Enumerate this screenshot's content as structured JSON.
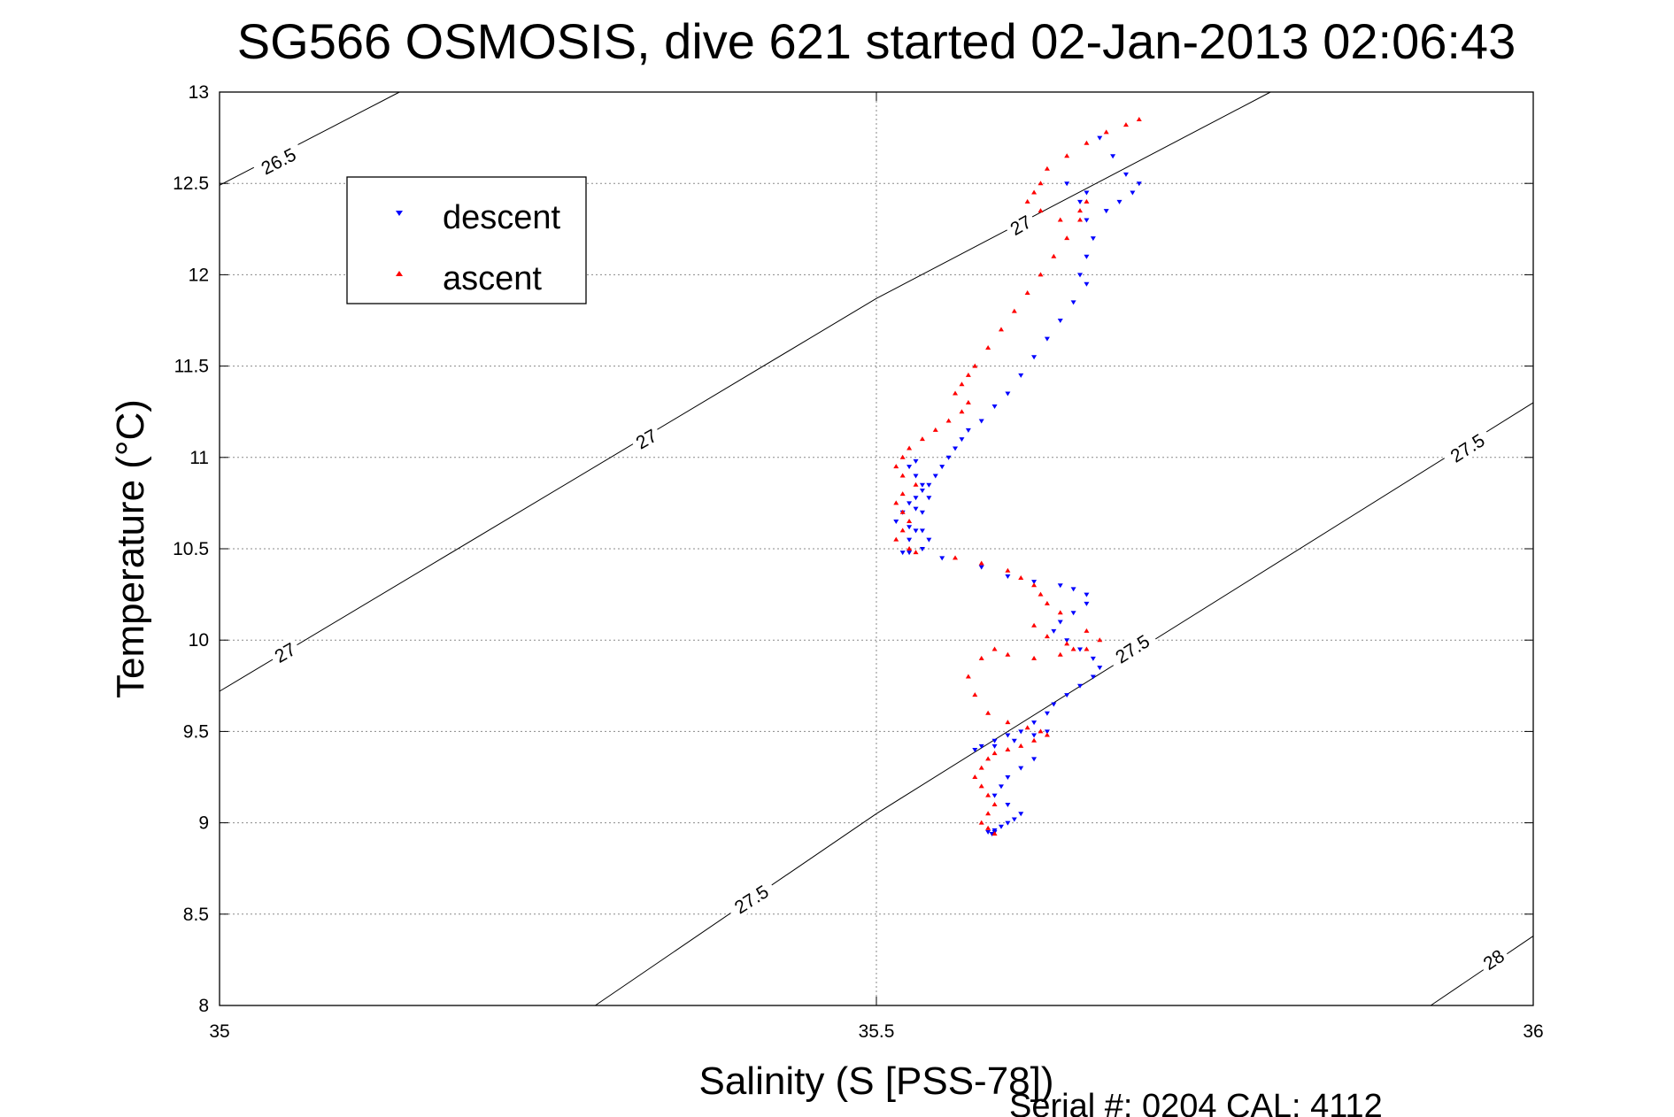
{
  "chart_data": {
    "type": "scatter",
    "title": "SG566 OSMOSIS, dive 621 started 02-Jan-2013 02:06:43",
    "xlabel": "Salinity (S [PSS-78])",
    "ylabel": "Temperature (°C)",
    "footer": "Serial #: 0204  CAL: 4112",
    "xlim": [
      35,
      36
    ],
    "ylim": [
      8,
      13
    ],
    "xticks": [
      35,
      35.5,
      36
    ],
    "yticks": [
      8,
      8.5,
      9,
      9.5,
      10,
      10.5,
      11,
      11.5,
      12,
      12.5,
      13
    ],
    "grid": true,
    "legend_position": "upper-left",
    "isopycnals": [
      {
        "label": "26.5",
        "points": [
          [
            35.0,
            12.49
          ],
          [
            35.137,
            13.0
          ]
        ],
        "label_at": [
          [
            35.045,
            12.62
          ]
        ]
      },
      {
        "label": "27",
        "points": [
          [
            35.0,
            9.72
          ],
          [
            35.5,
            11.87
          ],
          [
            35.8,
            13.0
          ]
        ],
        "label_at": [
          [
            35.05,
            9.93
          ],
          [
            35.325,
            11.1
          ],
          [
            35.61,
            12.27
          ]
        ]
      },
      {
        "label": "27.5",
        "points": [
          [
            35.286,
            8.0
          ],
          [
            35.5,
            9.05
          ],
          [
            36.0,
            11.3
          ]
        ],
        "label_at": [
          [
            35.405,
            8.58
          ],
          [
            35.695,
            9.95
          ],
          [
            35.95,
            11.05
          ]
        ]
      },
      {
        "label": "28",
        "points": [
          [
            35.922,
            8.0
          ],
          [
            36.0,
            8.38
          ]
        ],
        "label_at": [
          [
            35.97,
            8.25
          ]
        ]
      }
    ],
    "series": [
      {
        "name": "descent",
        "color": "#0000ff",
        "marker": "triangle-down",
        "x": [
          35.67,
          35.68,
          35.69,
          35.7,
          35.695,
          35.685,
          35.675,
          35.66,
          35.645,
          35.655,
          35.66,
          35.665,
          35.66,
          35.655,
          35.66,
          35.65,
          35.64,
          35.63,
          35.62,
          35.61,
          35.6,
          35.59,
          35.58,
          35.57,
          35.565,
          35.56,
          35.555,
          35.55,
          35.545,
          35.54,
          35.535,
          35.53,
          35.525,
          35.52,
          35.515,
          35.525,
          35.535,
          35.54,
          35.535,
          35.525,
          35.53,
          35.54,
          35.535,
          35.53,
          35.525,
          35.53,
          35.535,
          35.53,
          35.525,
          35.52,
          35.55,
          35.58,
          35.6,
          35.62,
          35.64,
          35.65,
          35.66,
          35.66,
          35.65,
          35.64,
          35.635,
          35.645,
          35.655,
          35.665,
          35.67,
          35.665,
          35.655,
          35.645,
          35.635,
          35.63,
          35.62,
          35.61,
          35.6,
          35.59,
          35.58,
          35.575,
          35.59,
          35.605,
          35.62,
          35.63,
          35.62,
          35.61,
          35.6,
          35.595,
          35.59,
          35.6,
          35.61,
          35.605,
          35.6,
          35.595,
          35.59,
          35.59,
          35.588,
          35.585
        ],
        "y": [
          12.75,
          12.65,
          12.55,
          12.5,
          12.45,
          12.4,
          12.35,
          12.45,
          12.5,
          12.4,
          12.3,
          12.2,
          12.1,
          12.0,
          11.95,
          11.85,
          11.75,
          11.65,
          11.55,
          11.45,
          11.35,
          11.28,
          11.2,
          11.15,
          11.1,
          11.05,
          11.0,
          10.95,
          10.9,
          10.85,
          10.82,
          10.78,
          10.75,
          10.7,
          10.65,
          10.62,
          10.6,
          10.55,
          10.5,
          10.48,
          10.72,
          10.78,
          10.85,
          10.9,
          10.95,
          10.98,
          10.7,
          10.6,
          10.55,
          10.48,
          10.45,
          10.4,
          10.35,
          10.32,
          10.3,
          10.28,
          10.25,
          10.2,
          10.15,
          10.1,
          10.05,
          10.0,
          9.95,
          9.9,
          9.85,
          9.8,
          9.75,
          9.7,
          9.65,
          9.6,
          9.55,
          9.5,
          9.48,
          9.45,
          9.42,
          9.4,
          9.42,
          9.45,
          9.48,
          9.5,
          9.35,
          9.3,
          9.25,
          9.2,
          9.15,
          9.1,
          9.05,
          9.02,
          9.0,
          8.98,
          8.96,
          8.95,
          8.94,
          8.95
        ]
      },
      {
        "name": "ascent",
        "color": "#ff0000",
        "marker": "triangle-up",
        "x": [
          35.7,
          35.69,
          35.675,
          35.66,
          35.645,
          35.63,
          35.625,
          35.62,
          35.615,
          35.625,
          35.64,
          35.655,
          35.66,
          35.655,
          35.645,
          35.635,
          35.625,
          35.615,
          35.605,
          35.595,
          35.585,
          35.575,
          35.57,
          35.565,
          35.56,
          35.57,
          35.565,
          35.555,
          35.545,
          35.535,
          35.525,
          35.52,
          35.515,
          35.52,
          35.53,
          35.52,
          35.515,
          35.52,
          35.525,
          35.52,
          35.515,
          35.525,
          35.53,
          35.56,
          35.58,
          35.6,
          35.61,
          35.62,
          35.625,
          35.63,
          35.64,
          35.62,
          35.63,
          35.645,
          35.66,
          35.67,
          35.66,
          35.65,
          35.64,
          35.62,
          35.6,
          35.59,
          35.58,
          35.57,
          35.575,
          35.585,
          35.6,
          35.615,
          35.625,
          35.63,
          35.62,
          35.61,
          35.6,
          35.59,
          35.585,
          35.58,
          35.575,
          35.58,
          35.585,
          35.59,
          35.585,
          35.58,
          35.585,
          35.59
        ],
        "y": [
          12.85,
          12.82,
          12.78,
          12.72,
          12.65,
          12.58,
          12.5,
          12.45,
          12.4,
          12.35,
          12.3,
          12.35,
          12.4,
          12.3,
          12.2,
          12.1,
          12.0,
          11.9,
          11.8,
          11.7,
          11.6,
          11.5,
          11.45,
          11.4,
          11.35,
          11.3,
          11.25,
          11.2,
          11.15,
          11.1,
          11.05,
          11.0,
          10.95,
          10.9,
          10.85,
          10.8,
          10.75,
          10.7,
          10.65,
          10.6,
          10.55,
          10.5,
          10.48,
          10.45,
          10.42,
          10.38,
          10.34,
          10.3,
          10.25,
          10.2,
          10.15,
          10.08,
          10.02,
          9.98,
          9.95,
          10.0,
          10.05,
          9.95,
          9.92,
          9.9,
          9.92,
          9.95,
          9.9,
          9.8,
          9.7,
          9.6,
          9.55,
          9.52,
          9.5,
          9.48,
          9.45,
          9.42,
          9.4,
          9.38,
          9.35,
          9.3,
          9.25,
          9.2,
          9.15,
          9.1,
          9.05,
          9.0,
          8.97,
          8.94
        ]
      }
    ]
  }
}
